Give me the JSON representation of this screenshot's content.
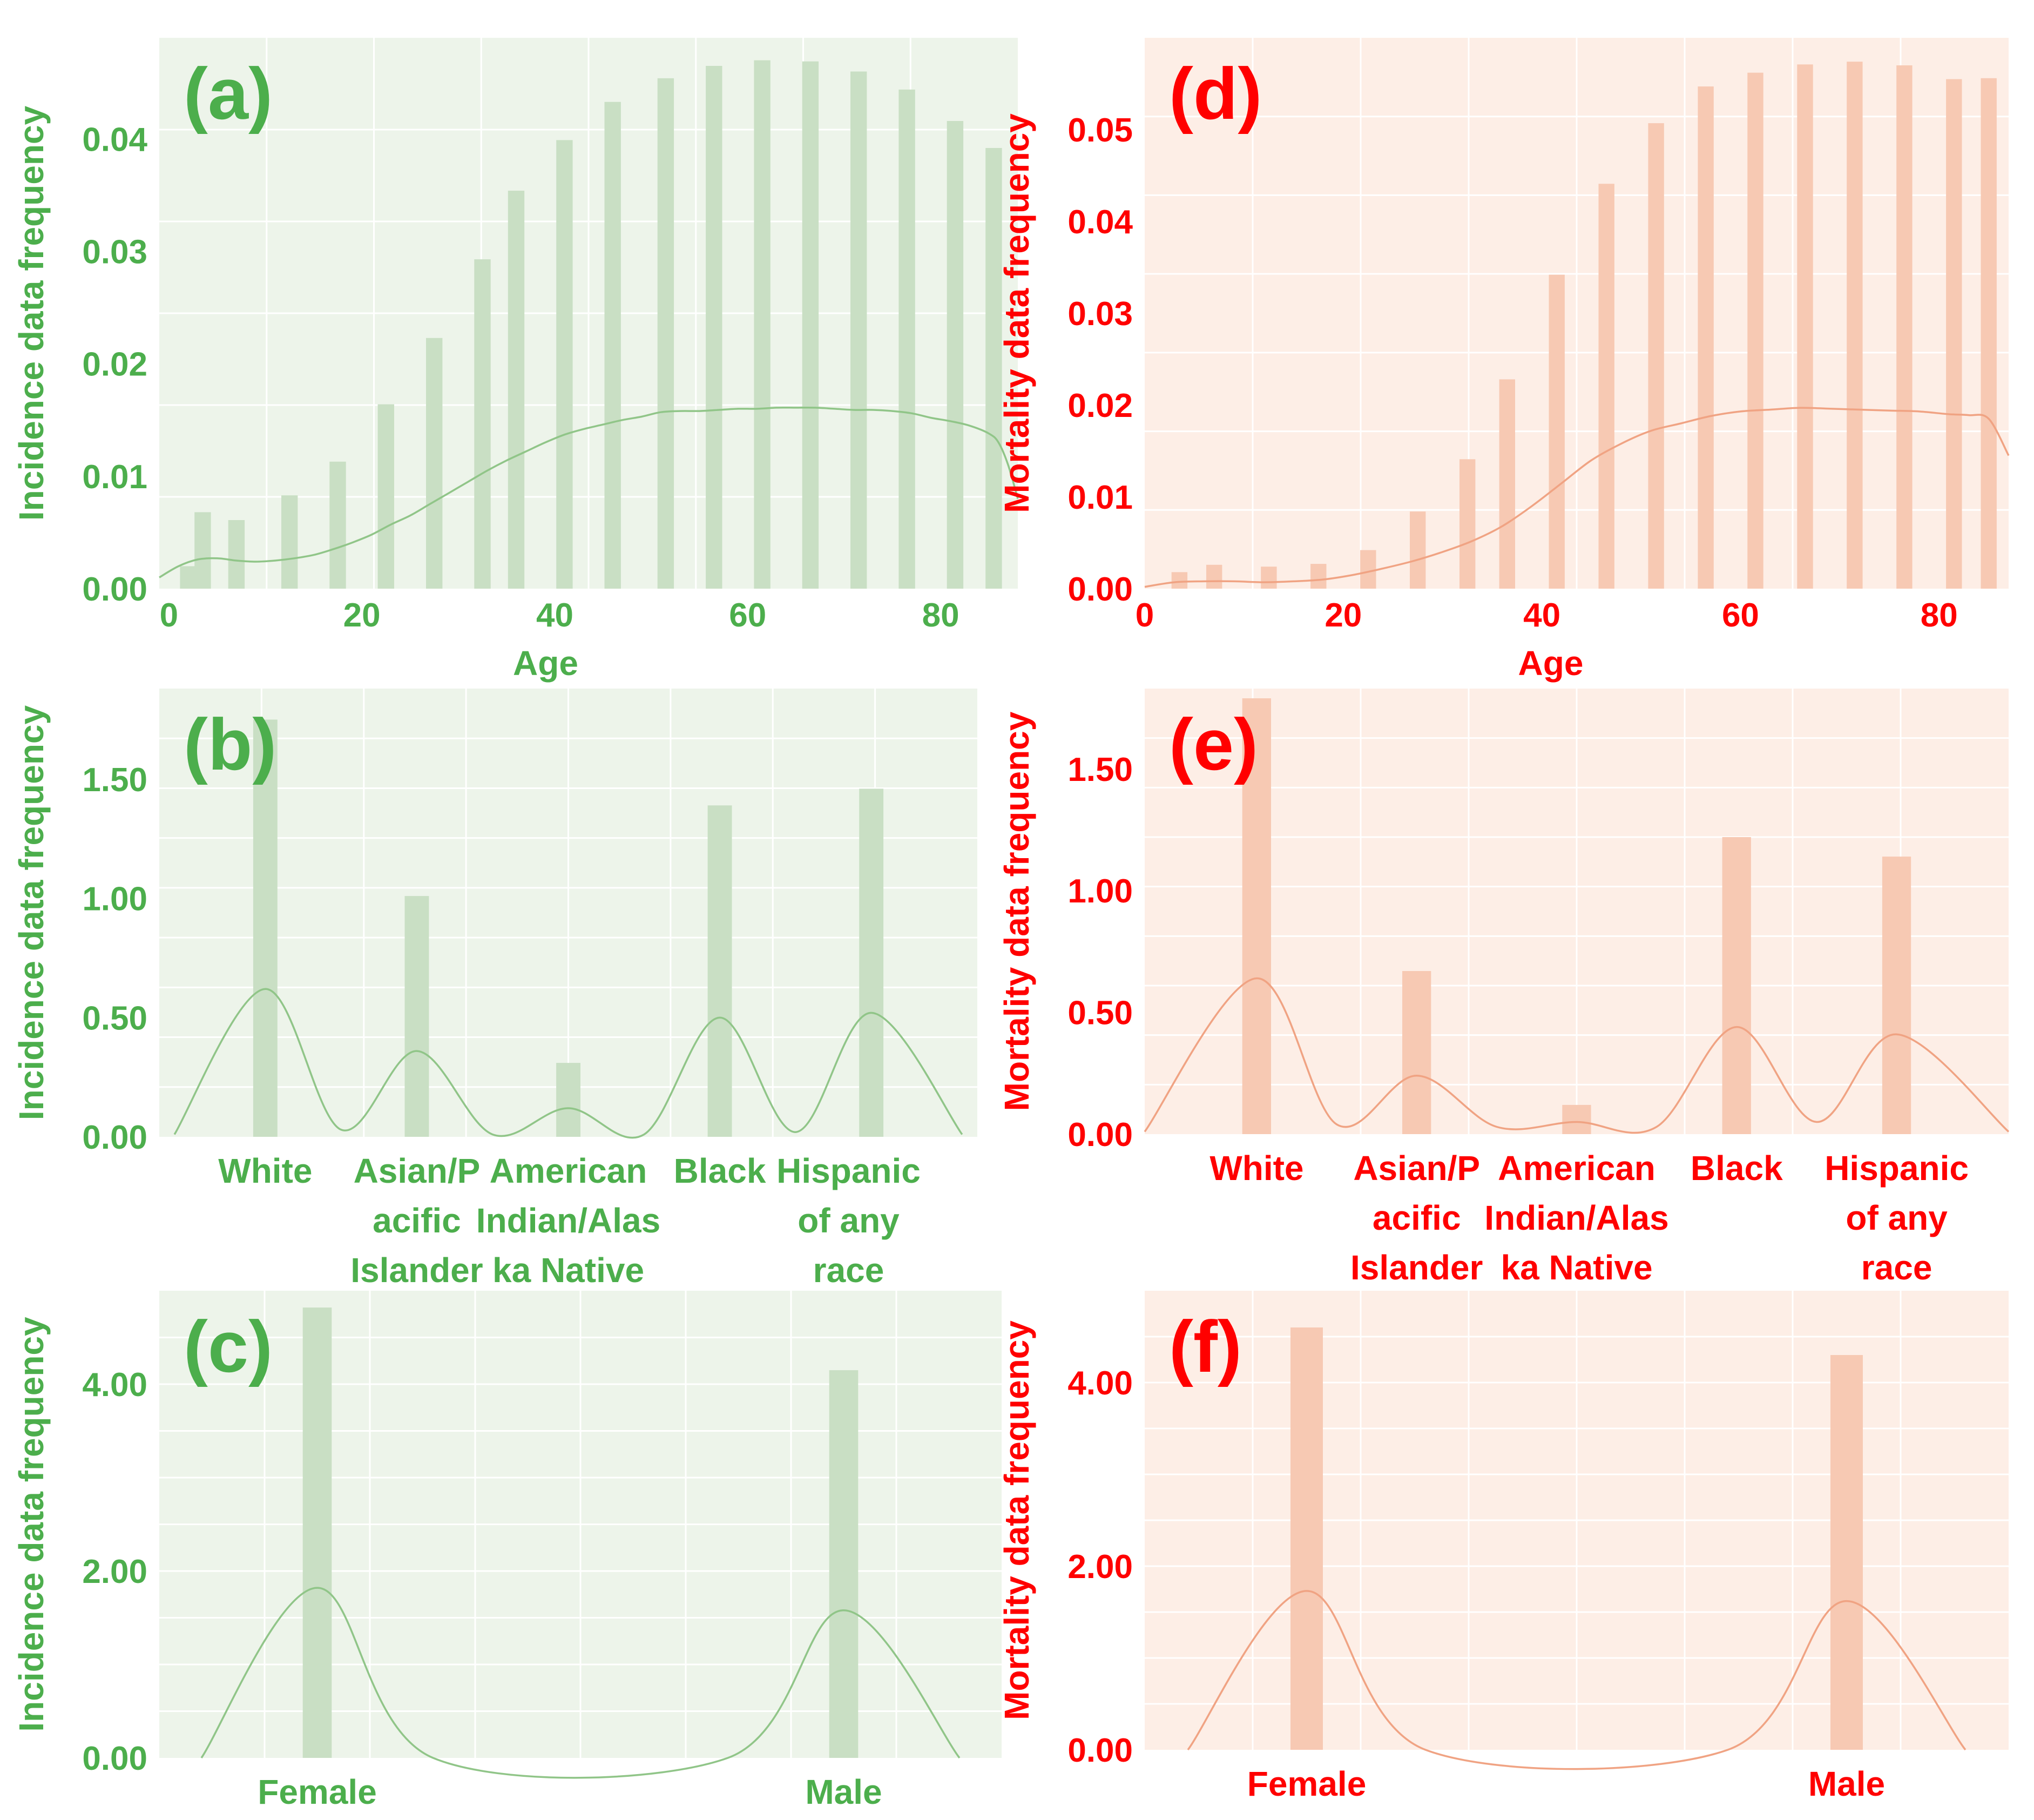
{
  "colors": {
    "green_text": "#4cae4c",
    "green_bg": "#edf4ea",
    "green_bar": "#c9dfc4",
    "green_line": "#90c588",
    "red_text": "#ff0000",
    "red_bg": "#fdeee6",
    "red_bar": "#f7c9b3",
    "red_line": "#f0a383",
    "grid": "#ffffff"
  },
  "chart_data": [
    {
      "id": "a",
      "type": "bar",
      "panel_label": "(a)",
      "theme": "green",
      "xlabel": "Age",
      "ylabel": "Incidence data frequency",
      "xlim": [
        -1,
        88
      ],
      "ylim": [
        0,
        0.049
      ],
      "xticks": [
        0,
        20,
        40,
        60,
        80
      ],
      "xtick_labels": [
        "0",
        "20",
        "40",
        "60",
        "80"
      ],
      "yticks": [
        0,
        0.01,
        0.02,
        0.03,
        0.04
      ],
      "ytick_labels": [
        "0.00",
        "0.01",
        "0.02",
        "0.03",
        "0.04"
      ],
      "bar_width": 1.7,
      "x": [
        2,
        3.5,
        7,
        12.5,
        17.5,
        22.5,
        27.5,
        32.5,
        36,
        41,
        46,
        51.5,
        56.5,
        61.5,
        66.5,
        71.5,
        76.5,
        81.5,
        85.5
      ],
      "values": [
        0.002,
        0.0068,
        0.0061,
        0.0083,
        0.0113,
        0.0164,
        0.0223,
        0.0293,
        0.0354,
        0.0399,
        0.0433,
        0.0454,
        0.0465,
        0.047,
        0.0469,
        0.046,
        0.0444,
        0.0416,
        0.0392
      ],
      "density": {
        "x": [
          -1,
          1,
          3,
          5,
          7,
          9,
          11,
          13,
          15,
          17,
          19,
          21,
          23,
          25,
          27,
          29,
          31,
          33,
          35,
          37,
          39,
          41,
          43,
          45,
          47,
          49,
          51,
          53,
          55,
          57,
          59,
          61,
          63,
          65,
          67,
          69,
          71,
          73,
          75,
          77,
          79,
          81,
          83,
          85,
          86,
          87,
          88
        ],
        "y": [
          0.001,
          0.002,
          0.0026,
          0.0027,
          0.0025,
          0.0024,
          0.0025,
          0.0027,
          0.003,
          0.0035,
          0.0041,
          0.0048,
          0.0057,
          0.0065,
          0.0075,
          0.0085,
          0.0095,
          0.0105,
          0.0114,
          0.0122,
          0.013,
          0.0137,
          0.0142,
          0.0146,
          0.015,
          0.0153,
          0.0157,
          0.0158,
          0.0158,
          0.0159,
          0.016,
          0.016,
          0.0161,
          0.0161,
          0.0161,
          0.016,
          0.0159,
          0.0159,
          0.0158,
          0.0156,
          0.0152,
          0.0149,
          0.0145,
          0.0138,
          0.013,
          0.011,
          0.008
        ]
      }
    },
    {
      "id": "d",
      "type": "bar",
      "panel_label": "(d)",
      "theme": "red",
      "xlabel": "Age",
      "ylabel": "Mortality data frequency",
      "xlim": [
        0,
        87
      ],
      "ylim": [
        0,
        0.06
      ],
      "xticks": [
        0,
        20,
        40,
        60,
        80
      ],
      "xtick_labels": [
        "0",
        "20",
        "40",
        "60",
        "80"
      ],
      "yticks": [
        0,
        0.01,
        0.02,
        0.03,
        0.04,
        0.05
      ],
      "ytick_labels": [
        "0.00",
        "0.01",
        "0.02",
        "0.03",
        "0.04",
        "0.05"
      ],
      "bar_width": 1.6,
      "x": [
        3.5,
        7,
        12.5,
        17.5,
        22.5,
        27.5,
        32.5,
        36.5,
        41.5,
        46.5,
        51.5,
        56.5,
        61.5,
        66.5,
        71.5,
        76.5,
        81.5,
        85
      ],
      "values": [
        0.0018,
        0.0026,
        0.0024,
        0.0027,
        0.0042,
        0.0084,
        0.0141,
        0.0228,
        0.0342,
        0.0441,
        0.0507,
        0.0547,
        0.0562,
        0.0571,
        0.0574,
        0.057,
        0.0555,
        0.0556
      ],
      "density": {
        "x": [
          0,
          3,
          6,
          9,
          12,
          15,
          18,
          21,
          24,
          27,
          30,
          33,
          36,
          39,
          42,
          45,
          48,
          51,
          54,
          57,
          60,
          63,
          66,
          69,
          72,
          75,
          78,
          81,
          83,
          85,
          87
        ],
        "y": [
          0.0002,
          0.0007,
          0.0008,
          0.0008,
          0.0007,
          0.0008,
          0.001,
          0.0015,
          0.0022,
          0.003,
          0.004,
          0.0052,
          0.0068,
          0.009,
          0.0115,
          0.014,
          0.0158,
          0.0172,
          0.018,
          0.0188,
          0.0193,
          0.0195,
          0.0197,
          0.0196,
          0.0195,
          0.0194,
          0.0193,
          0.019,
          0.0189,
          0.0185,
          0.0145
        ]
      }
    },
    {
      "id": "b",
      "type": "bar",
      "panel_label": "(b)",
      "theme": "green",
      "ylabel": "Incidence data frequency",
      "xlim": [
        -0.7,
        4.7
      ],
      "ylim": [
        0,
        1.88
      ],
      "yticks": [
        0,
        0.5,
        1.0,
        1.5
      ],
      "ytick_labels": [
        "0.00",
        "0.50",
        "1.00",
        "1.50"
      ],
      "categories": [
        [
          "White"
        ],
        [
          "Asian/P",
          "acific",
          "Islander"
        ],
        [
          "American",
          "Indian/Alas",
          "ka Native"
        ],
        [
          "Black"
        ],
        [
          "Hispanic",
          "of any",
          "race"
        ]
      ],
      "cat_label_offset": [
        0,
        0,
        0,
        0,
        -0.15
      ],
      "bar_width": 0.16,
      "values": [
        1.75,
        1.01,
        0.31,
        1.39,
        1.46
      ],
      "density": {
        "x": [
          -0.6,
          0.0,
          0.5,
          1.0,
          1.5,
          2.0,
          2.5,
          3.0,
          3.5,
          4.0,
          4.6
        ],
        "y": [
          0.01,
          0.62,
          0.03,
          0.36,
          0.01,
          0.12,
          0.01,
          0.5,
          0.02,
          0.52,
          0.01
        ]
      }
    },
    {
      "id": "e",
      "type": "bar",
      "panel_label": "(e)",
      "theme": "red",
      "ylabel": "Mortality data frequency",
      "xlim": [
        -0.7,
        4.7
      ],
      "ylim": [
        0,
        1.83
      ],
      "yticks": [
        0,
        0.5,
        1.0,
        1.5
      ],
      "ytick_labels": [
        "0.00",
        "0.50",
        "1.00",
        "1.50"
      ],
      "categories": [
        [
          "White"
        ],
        [
          "Asian/P",
          "acific",
          "Islander"
        ],
        [
          "American",
          "Indian/Alas",
          "ka Native"
        ],
        [
          "Black"
        ],
        [
          "Hispanic",
          "of any",
          "race"
        ]
      ],
      "cat_label_offset": [
        0,
        0,
        0,
        0,
        0
      ],
      "bar_width": 0.18,
      "values": [
        1.79,
        0.67,
        0.12,
        1.22,
        1.14
      ],
      "density": {
        "x": [
          -0.7,
          0.0,
          0.5,
          1.0,
          1.5,
          2.0,
          2.5,
          3.0,
          3.5,
          4.0,
          4.7
        ],
        "y": [
          0.01,
          0.64,
          0.04,
          0.24,
          0.03,
          0.05,
          0.03,
          0.44,
          0.05,
          0.41,
          0.01
        ]
      }
    },
    {
      "id": "c",
      "type": "bar",
      "panel_label": "(c)",
      "theme": "green",
      "ylabel": "Incidence data frequency",
      "xlim": [
        -0.3,
        1.3
      ],
      "ylim": [
        0,
        5.0
      ],
      "yticks": [
        0,
        2,
        4
      ],
      "ytick_labels": [
        "0.00",
        "2.00",
        "4.00"
      ],
      "categories": [
        [
          "Female"
        ],
        [
          "Male"
        ]
      ],
      "cat_label_offset": [
        0,
        0
      ],
      "bar_width": 0.055,
      "values": [
        4.82,
        4.15
      ],
      "density": {
        "x": [
          -0.22,
          0.0,
          0.22,
          0.78,
          1.0,
          1.22
        ],
        "y": [
          0.0,
          1.82,
          0.0,
          0.0,
          1.58,
          0.0
        ]
      }
    },
    {
      "id": "f",
      "type": "bar",
      "panel_label": "(f)",
      "theme": "red",
      "ylabel": "Mortality data frequency",
      "xlim": [
        -0.3,
        1.3
      ],
      "ylim": [
        0,
        5.0
      ],
      "yticks": [
        0,
        2,
        4
      ],
      "ytick_labels": [
        "0.00",
        "2.00",
        "4.00"
      ],
      "categories": [
        [
          "Female"
        ],
        [
          "Male"
        ]
      ],
      "cat_label_offset": [
        0,
        0
      ],
      "bar_width": 0.06,
      "values": [
        4.6,
        4.3
      ],
      "density": {
        "x": [
          -0.22,
          0.0,
          0.22,
          0.78,
          1.0,
          1.22
        ],
        "y": [
          0.0,
          1.73,
          0.0,
          0.0,
          1.62,
          0.0
        ]
      }
    }
  ]
}
